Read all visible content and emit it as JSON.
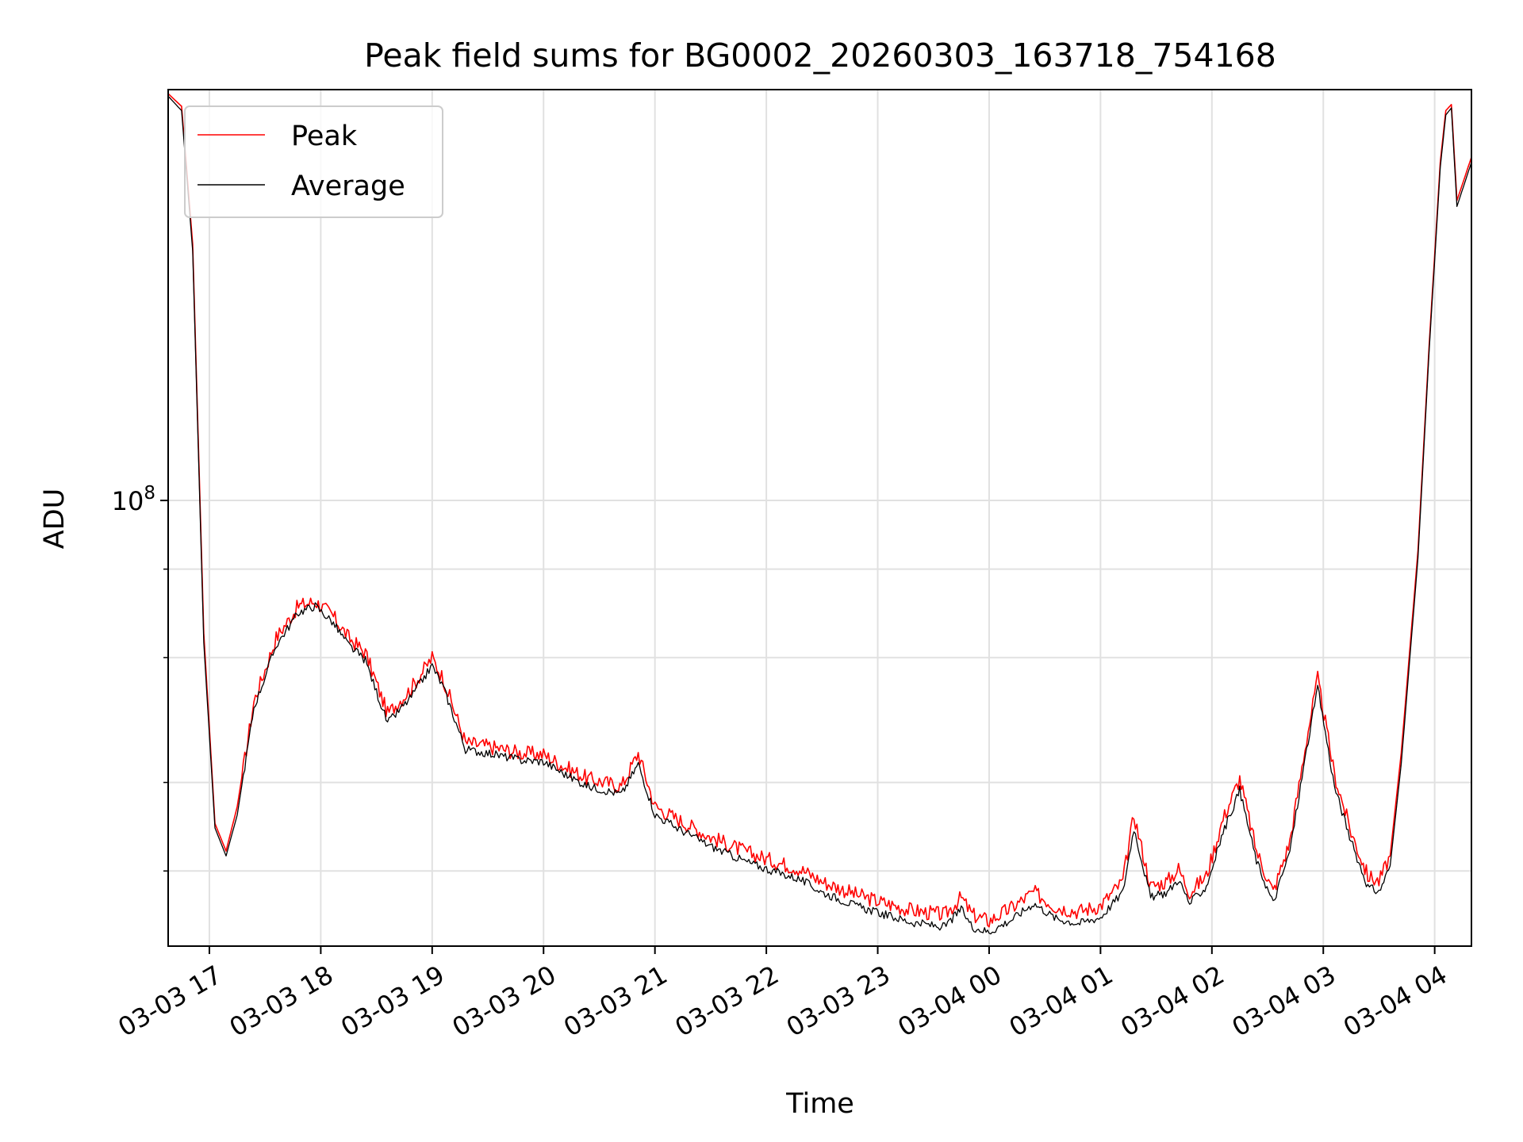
{
  "chart_data": {
    "type": "line",
    "title": "Peak field sums for BG0002_20260303_163718_754168",
    "xlabel": "Time",
    "ylabel": "ADU",
    "yscale": "log",
    "grid": true,
    "legend_position": "top-left",
    "xlim": [
      16.63,
      28.33
    ],
    "ylim": [
      23500000,
      380000000
    ],
    "x_ticks": [
      {
        "value": 17,
        "label": "03-03 17"
      },
      {
        "value": 18,
        "label": "03-03 18"
      },
      {
        "value": 19,
        "label": "03-03 19"
      },
      {
        "value": 20,
        "label": "03-03 20"
      },
      {
        "value": 21,
        "label": "03-03 21"
      },
      {
        "value": 22,
        "label": "03-03 22"
      },
      {
        "value": 23,
        "label": "03-03 23"
      },
      {
        "value": 24,
        "label": "03-04 00"
      },
      {
        "value": 25,
        "label": "03-04 01"
      },
      {
        "value": 26,
        "label": "03-04 02"
      },
      {
        "value": 27,
        "label": "03-04 03"
      },
      {
        "value": 28,
        "label": "03-04 04"
      }
    ],
    "y_major_ticks": [
      {
        "value": 100000000,
        "base": "10",
        "exponent": "8"
      }
    ],
    "y_minor_ticks": [
      30000000,
      40000000,
      60000000,
      80000000
    ],
    "x_unit": "hours since 2026-03-03 00:00",
    "series": [
      {
        "name": "Peak",
        "color": "#ff0000",
        "x": [
          16.63,
          16.75,
          16.85,
          16.95,
          17.05,
          17.15,
          17.25,
          17.4,
          17.6,
          17.8,
          17.95,
          18.1,
          18.25,
          18.4,
          18.6,
          18.8,
          19.0,
          19.1,
          19.3,
          19.5,
          19.8,
          20.0,
          20.2,
          20.4,
          20.7,
          20.85,
          21.0,
          21.2,
          21.5,
          21.8,
          22.0,
          22.3,
          22.5,
          22.8,
          23.0,
          23.3,
          23.6,
          23.75,
          23.85,
          24.0,
          24.2,
          24.4,
          24.6,
          24.8,
          25.0,
          25.2,
          25.3,
          25.45,
          25.6,
          25.7,
          25.8,
          25.95,
          26.1,
          26.25,
          26.4,
          26.55,
          26.7,
          26.85,
          26.95,
          27.1,
          27.25,
          27.4,
          27.5,
          27.6,
          27.7,
          27.85,
          27.95,
          28.05,
          28.1,
          28.15,
          28.2,
          28.33
        ],
        "values": [
          375000000,
          360000000,
          230000000,
          65000000,
          35000000,
          32000000,
          37000000,
          52000000,
          64000000,
          71000000,
          72000000,
          69000000,
          64000000,
          61000000,
          50000000,
          54000000,
          60000000,
          56000000,
          45500000,
          45000000,
          44000000,
          43800000,
          42000000,
          40500000,
          39500000,
          44000000,
          37000000,
          35500000,
          33500000,
          32000000,
          31200000,
          30200000,
          29000000,
          27800000,
          27200000,
          26400000,
          26000000,
          27500000,
          26000000,
          25500000,
          26600000,
          28000000,
          26700000,
          26300000,
          26800000,
          29000000,
          36000000,
          28500000,
          29000000,
          30200000,
          28000000,
          29500000,
          35500000,
          40500000,
          32000000,
          28000000,
          33000000,
          46000000,
          56000000,
          41000000,
          34000000,
          29500000,
          29000000,
          31500000,
          44000000,
          85000000,
          165000000,
          300000000,
          355000000,
          362000000,
          265000000,
          305000000
        ]
      },
      {
        "name": "Average",
        "color": "#000000",
        "x": [
          16.63,
          16.75,
          16.85,
          16.95,
          17.05,
          17.15,
          17.25,
          17.4,
          17.6,
          17.8,
          17.95,
          18.1,
          18.25,
          18.4,
          18.6,
          18.8,
          19.0,
          19.1,
          19.3,
          19.5,
          19.8,
          20.0,
          20.2,
          20.4,
          20.7,
          20.85,
          21.0,
          21.2,
          21.5,
          21.8,
          22.0,
          22.3,
          22.5,
          22.8,
          23.0,
          23.3,
          23.6,
          23.75,
          23.85,
          24.0,
          24.2,
          24.4,
          24.6,
          24.8,
          25.0,
          25.2,
          25.3,
          25.45,
          25.6,
          25.7,
          25.8,
          25.95,
          26.1,
          26.25,
          26.4,
          26.55,
          26.7,
          26.85,
          26.95,
          27.1,
          27.25,
          27.4,
          27.5,
          27.6,
          27.7,
          27.85,
          27.95,
          28.05,
          28.1,
          28.15,
          28.2,
          28.33
        ],
        "values": [
          372000000,
          355000000,
          225000000,
          63000000,
          34500000,
          31500000,
          36000000,
          51000000,
          62500000,
          69500000,
          71000000,
          67500000,
          62500000,
          59500000,
          48500000,
          52500000,
          58500000,
          54500000,
          44500000,
          44000000,
          43000000,
          42800000,
          41000000,
          39500000,
          38500000,
          42500000,
          36000000,
          34500000,
          32500000,
          31000000,
          30200000,
          29200000,
          28000000,
          26800000,
          26200000,
          25400000,
          25000000,
          26500000,
          25000000,
          24600000,
          25600000,
          27000000,
          25700000,
          25300000,
          25800000,
          28000000,
          34500000,
          27500000,
          28000000,
          29200000,
          27000000,
          28500000,
          34000000,
          39000000,
          31000000,
          27000000,
          32000000,
          44500000,
          54500000,
          39500000,
          33000000,
          28500000,
          28000000,
          30500000,
          42500000,
          83000000,
          162000000,
          295000000,
          350000000,
          358000000,
          260000000,
          300000000
        ]
      }
    ]
  }
}
